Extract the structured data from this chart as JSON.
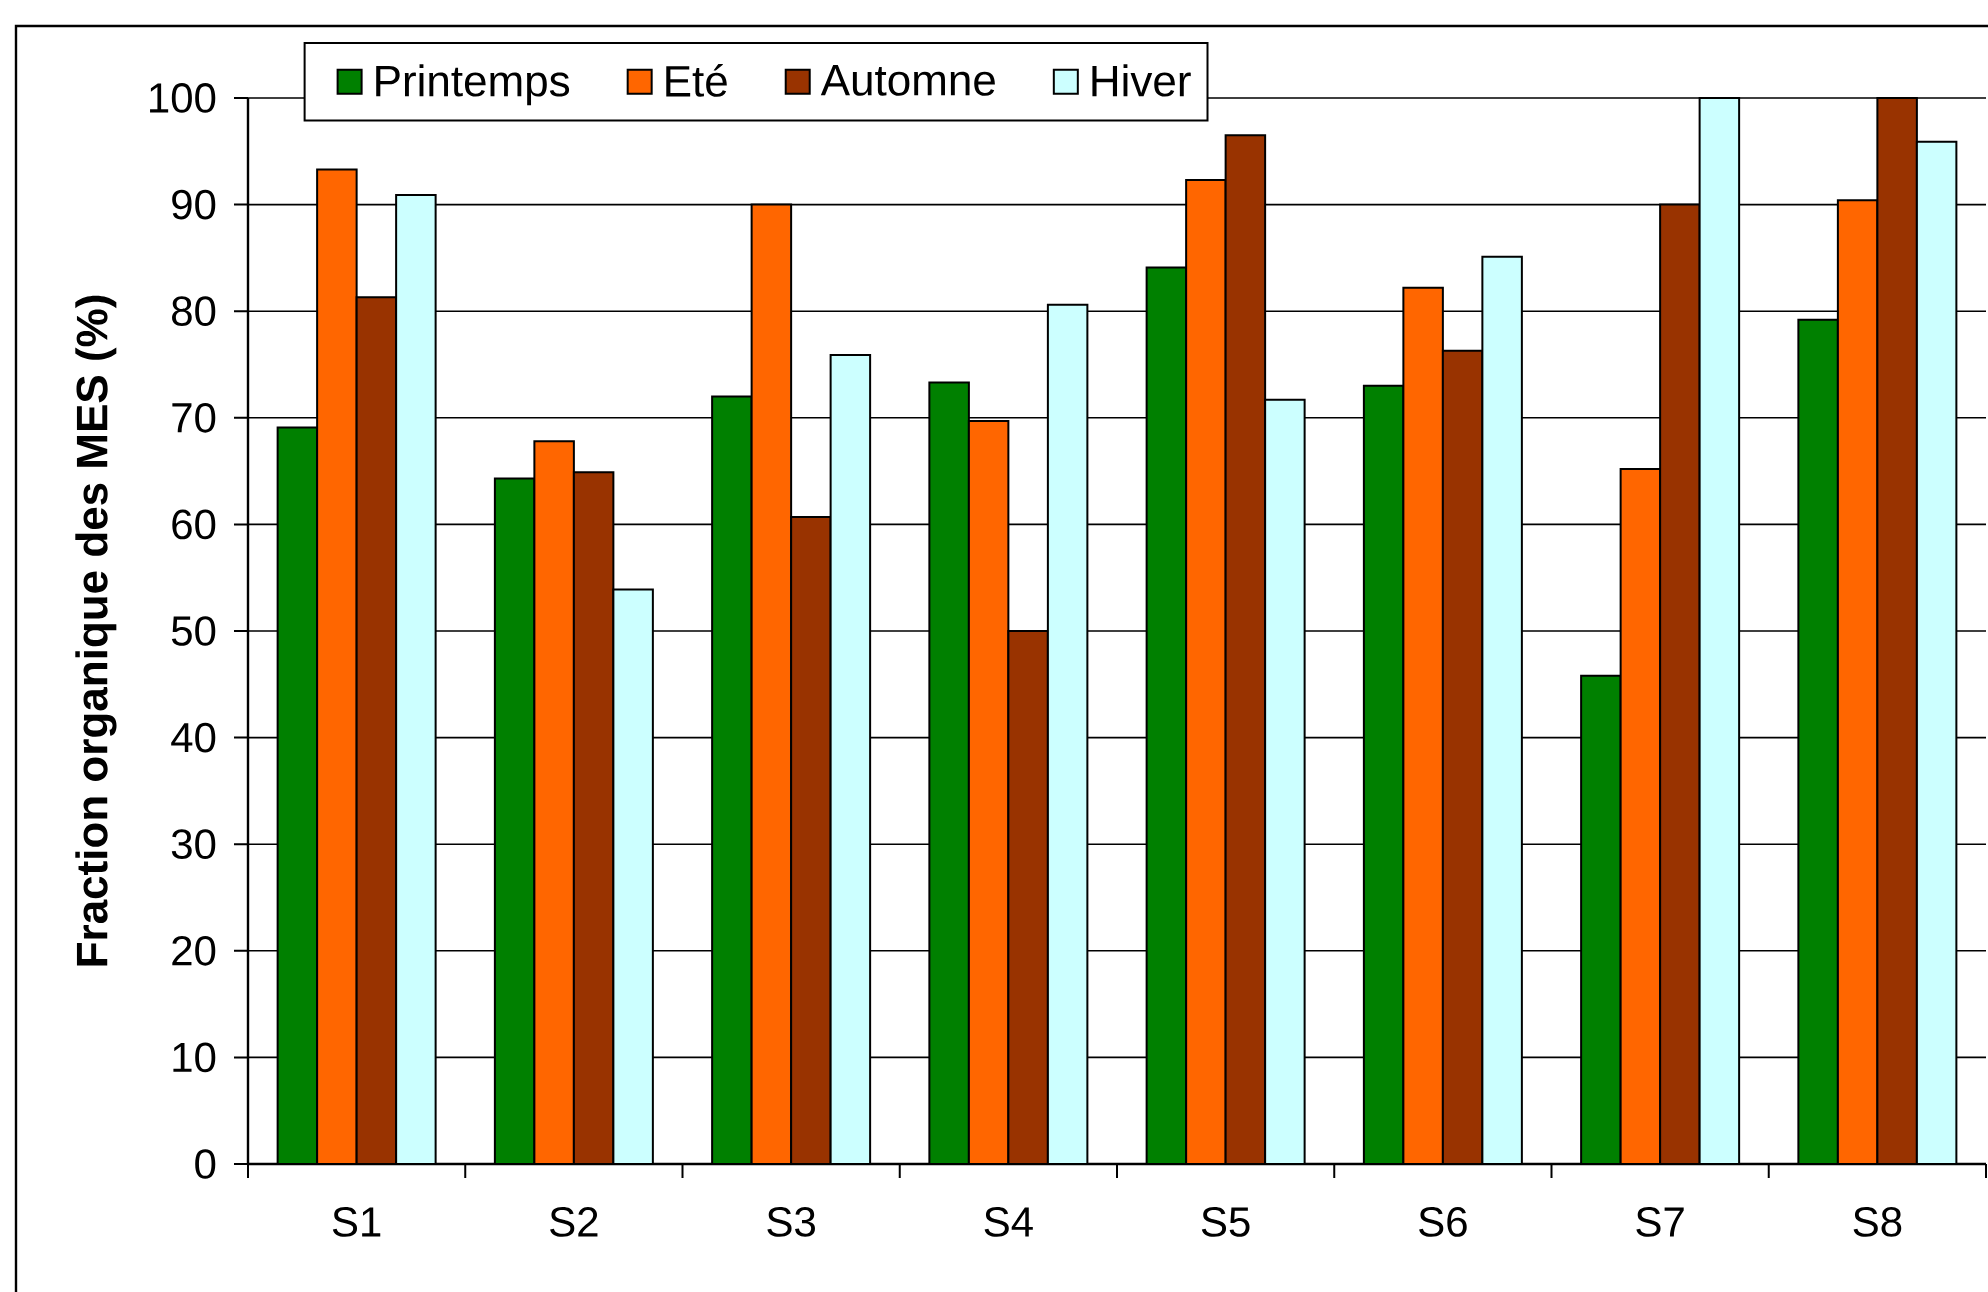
{
  "chart_data": {
    "type": "bar",
    "ylabel": "Fraction organique des MES (%)",
    "categories": [
      "S1",
      "S2",
      "S3",
      "S4",
      "S5",
      "S6",
      "S7",
      "S8"
    ],
    "series": [
      {
        "name": "Printemps",
        "color": "#008000",
        "values": [
          69.1,
          64.3,
          72.0,
          73.3,
          84.1,
          73.0,
          45.8,
          79.2
        ]
      },
      {
        "name": "Eté",
        "color": "#ff6600",
        "values": [
          93.3,
          67.8,
          90.0,
          69.7,
          92.3,
          82.2,
          65.2,
          90.4
        ]
      },
      {
        "name": "Automne",
        "color": "#993300",
        "values": [
          81.3,
          64.9,
          60.7,
          50.0,
          96.5,
          76.3,
          90.0,
          100.0
        ]
      },
      {
        "name": "Hiver",
        "color": "#ccffff",
        "values": [
          90.9,
          53.9,
          75.9,
          80.6,
          71.7,
          85.1,
          100.0,
          95.9
        ]
      }
    ],
    "ylim": [
      0,
      100
    ],
    "yticks": [
      0,
      10,
      20,
      30,
      40,
      50,
      60,
      70,
      80,
      90,
      100
    ],
    "grid": "y",
    "legend": "top left"
  }
}
